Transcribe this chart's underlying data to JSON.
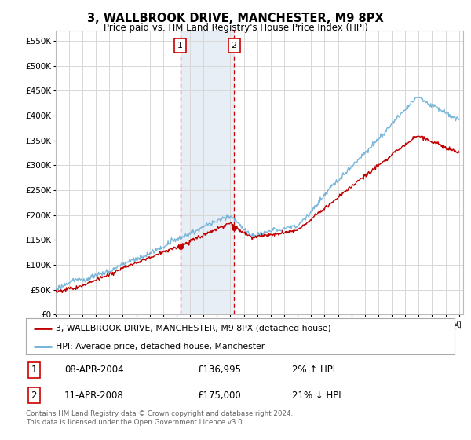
{
  "title": "3, WALLBROOK DRIVE, MANCHESTER, M9 8PX",
  "subtitle": "Price paid vs. HM Land Registry's House Price Index (HPI)",
  "legend_line1": "3, WALLBROOK DRIVE, MANCHESTER, M9 8PX (detached house)",
  "legend_line2": "HPI: Average price, detached house, Manchester",
  "footer1": "Contains HM Land Registry data © Crown copyright and database right 2024.",
  "footer2": "This data is licensed under the Open Government Licence v3.0.",
  "sale1_label": "1",
  "sale1_date": "08-APR-2004",
  "sale1_price": "£136,995",
  "sale1_hpi": "2% ↑ HPI",
  "sale2_label": "2",
  "sale2_date": "11-APR-2008",
  "sale2_price": "£175,000",
  "sale2_hpi": "21% ↓ HPI",
  "sale1_year": 2004.27,
  "sale1_value": 136995,
  "sale2_year": 2008.27,
  "sale2_value": 175000,
  "ylim": [
    0,
    570000
  ],
  "yticks": [
    0,
    50000,
    100000,
    150000,
    200000,
    250000,
    300000,
    350000,
    400000,
    450000,
    500000,
    550000
  ],
  "hpi_color": "#6aaed6",
  "sale_color": "#c00000",
  "vline_color": "#cc0000",
  "shade_color": "#dce6f1",
  "background_color": "#ffffff",
  "grid_color": "#d8d8d8"
}
